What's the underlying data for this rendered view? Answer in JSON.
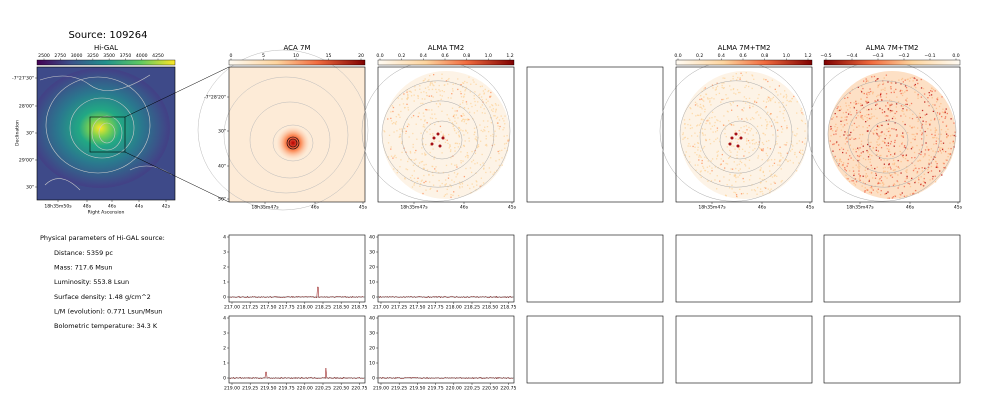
{
  "header": {
    "title": "Source: 109264"
  },
  "images": [
    {
      "title": "Hi-GAL",
      "colorbar_ticks": [
        "2500",
        "2750",
        "3000",
        "3250",
        "3500",
        "3750",
        "4000",
        "4250"
      ],
      "yticks": [
        "-7°27'30\"",
        "28'00\"",
        "30\"",
        "29'00\"",
        "30\""
      ],
      "ylabel": "Declination",
      "xticks": [
        "18h35m50s",
        "48s",
        "46s",
        "44s",
        "42s"
      ],
      "xlabel": "Right Ascension"
    },
    {
      "title": "ACA 7M",
      "colorbar_ticks": [
        "0",
        "5",
        "10",
        "15",
        "20"
      ],
      "yticks": [
        "-7°28'20\"",
        "30\"",
        "40\"",
        "50\""
      ],
      "xticks": [
        "18h35m47s",
        "46s",
        "45s"
      ]
    },
    {
      "title": "ALMA TM2",
      "colorbar_ticks": [
        "0.0",
        "0.2",
        "0.4",
        "0.6",
        "0.8",
        "1.0",
        "1.2"
      ],
      "xticks": [
        "18h35m47s",
        "46s",
        "45s"
      ]
    },
    {
      "title": "ALMA 7M+TM2",
      "colorbar_ticks": [
        "0.0",
        "0.2",
        "0.4",
        "0.6",
        "0.8",
        "1.0",
        "1.2"
      ],
      "xticks": [
        "18h35m47s",
        "46s",
        "45s"
      ]
    },
    {
      "title": "ALMA 7M+TM2",
      "colorbar_ticks": [
        "−0.5",
        "−0.4",
        "−0.3",
        "−0.2",
        "−0.1",
        "0.0"
      ],
      "xticks": [
        "18h35m47s",
        "46s",
        "45s"
      ]
    }
  ],
  "parameters": {
    "heading": "Physical parameters of Hi-GAL source:",
    "items": [
      "Distance: 5359 pc",
      "Mass: 717.6 Msun",
      "Luminosity: 553.8 Lsun",
      "Surface density: 1.48 g/cm^2",
      "L/M (evolution): 0.771 Lsun/Msun",
      "Bolometric temperature: 34.3 K"
    ]
  },
  "spectra": [
    {
      "yticks": [
        "0",
        "1",
        "2",
        "3",
        "4"
      ],
      "xticks": [
        "217.00",
        "217.25",
        "217.50",
        "217.75",
        "218.00",
        "218.25",
        "218.50",
        "218.75"
      ]
    },
    {
      "yticks": [
        "0",
        "10",
        "20",
        "30",
        "40"
      ],
      "xticks": [
        "217.00",
        "217.25",
        "217.50",
        "217.75",
        "218.00",
        "218.25",
        "218.50",
        "218.75"
      ]
    },
    {
      "yticks": [
        "0",
        "1",
        "2",
        "3",
        "4"
      ],
      "xticks": [
        "219.00",
        "219.25",
        "219.50",
        "219.75",
        "220.00",
        "220.25",
        "220.50",
        "220.75"
      ]
    },
    {
      "yticks": [
        "0",
        "10",
        "20",
        "30",
        "40"
      ],
      "xticks": [
        "219.00",
        "219.25",
        "219.50",
        "219.75",
        "220.00",
        "220.25",
        "220.50",
        "220.75"
      ]
    }
  ]
}
